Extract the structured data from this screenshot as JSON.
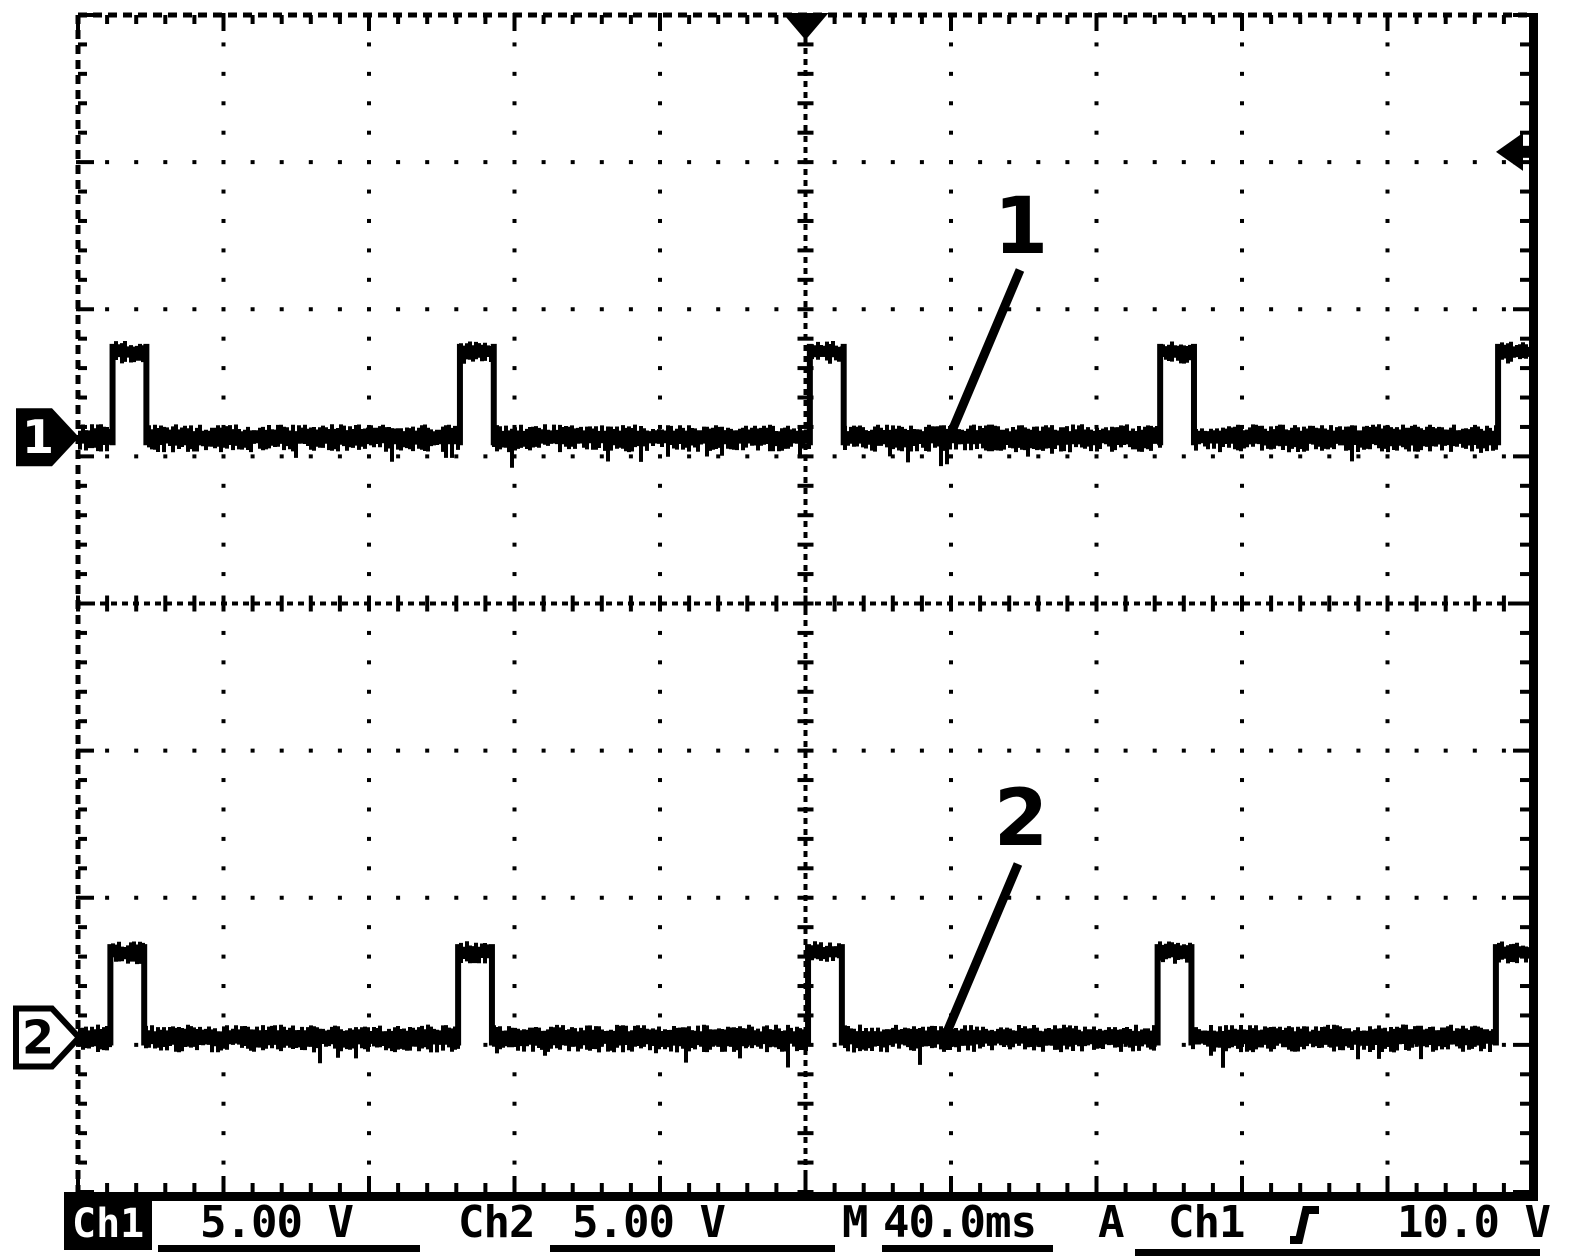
{
  "scope": {
    "markers": {
      "ch1": "1",
      "ch2": "2"
    },
    "annotations": [
      {
        "label": "1",
        "points_to": "Ch1 pulse waveform"
      },
      {
        "label": "2",
        "points_to": "Ch2 pulse waveform"
      }
    ],
    "status_bar": {
      "ch1_label": "Ch1",
      "ch1_scale": "5.00 V",
      "ch2_label": "Ch2",
      "ch2_scale": "5.00 V",
      "m_label": "M",
      "timebase": "40.0ms",
      "trigger_mode": "A",
      "trigger_source": "Ch1",
      "trigger_slope_icon": "rising-edge",
      "trigger_level": "10.0 V"
    },
    "colors": {
      "foreground": "#000000",
      "background": "#ffffff"
    }
  },
  "chart_data": {
    "type": "line",
    "subtype": "oscilloscope-pulse-train",
    "title": "",
    "xlabel": "",
    "ylabel": "",
    "x_units": "ms",
    "time_per_div_ms": 40,
    "x_divisions": 10,
    "y_divisions": 8,
    "x_range_ms": [
      -200,
      200
    ],
    "grid": "dotted minor grid every 0.2 div, dashed center axes with tick marks",
    "legend_position": "none",
    "series": [
      {
        "name": "Ch1",
        "volts_per_div": 5.0,
        "baseline_div_from_top": 2.87,
        "pulse_height_div": 0.58,
        "low_level_v": 0,
        "high_level_v": 2.9,
        "pulse_width_ms": 9.3,
        "pulse_rise_times_ms": [
          -190.5,
          -95.0,
          1.2,
          97.5,
          190.4
        ],
        "waveform": "periodic narrow positive rectangular pulses on a noisy baseline"
      },
      {
        "name": "Ch2",
        "volts_per_div": 5.0,
        "baseline_div_from_top": 6.95,
        "pulse_height_div": 0.58,
        "low_level_v": 0,
        "high_level_v": 2.9,
        "pulse_width_ms": 9.3,
        "pulse_rise_times_ms": [
          -191.1,
          -95.5,
          0.7,
          96.8,
          189.8
        ],
        "waveform": "periodic narrow positive rectangular pulses on a noisy baseline"
      }
    ],
    "trigger": {
      "source": "Ch1",
      "slope": "rising",
      "level_v": 10.0,
      "level_marker_div_from_top": 0.93,
      "position_div_from_left": 5.0
    }
  }
}
